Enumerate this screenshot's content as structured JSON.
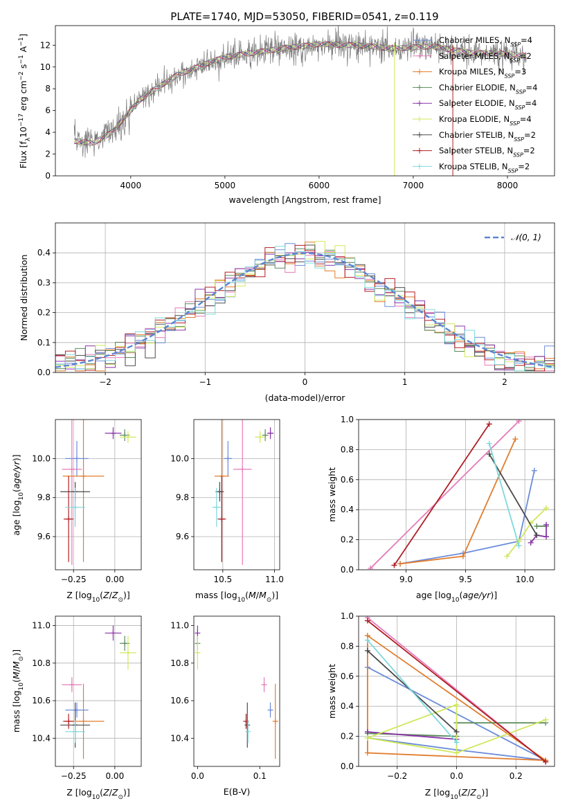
{
  "title": "PLATE=1740, MJD=53050, FIBERID=0541, z=0.119",
  "colors": {
    "Chabrier MILES": "#6a8cd9",
    "Salpeter MILES": "#e57ab8",
    "Kroupa MILES": "#e17c2c",
    "Chabrier ELODIE": "#5a8a5a",
    "Salpeter ELODIE": "#8a33a8",
    "Kroupa ELODIE": "#cfe85a",
    "Chabrier STELIB": "#4a4a4a",
    "Salpeter STELIB": "#b01e24",
    "Kroupa STELIB": "#7dd8dc"
  },
  "chart_data": [
    {
      "type": "line",
      "xlabel": "wavelength [Angstrom, rest frame]",
      "ylabel": "Flux [f_λ10^−17 erg cm^−2 s^−1 A^−1]",
      "xlim": [
        3200,
        8500
      ],
      "ylim": [
        0,
        13.8
      ],
      "xticks": [
        4000,
        5000,
        6000,
        7000,
        8000
      ],
      "yticks": [
        0,
        2,
        4,
        6,
        8,
        10,
        12
      ],
      "grid": false,
      "legend_position": "top-right",
      "legend": [
        {
          "key": "Chabrier MILES",
          "label": "Chabrier MILES, N",
          "sub": "SSP",
          "n": "=4"
        },
        {
          "key": "Salpeter MILES",
          "label": "Salpeter MILES, N",
          "sub": "SSP",
          "n": "=2"
        },
        {
          "key": "Kroupa MILES",
          "label": "Kroupa MILES, N",
          "sub": "SSP",
          "n": "=3"
        },
        {
          "key": "Chabrier ELODIE",
          "label": "Chabrier ELODIE, N",
          "sub": "SSP",
          "n": "=4"
        },
        {
          "key": "Salpeter ELODIE",
          "label": "Salpeter ELODIE, N",
          "sub": "SSP",
          "n": "=4"
        },
        {
          "key": "Kroupa ELODIE",
          "label": "Kroupa ELODIE, N",
          "sub": "SSP",
          "n": "=4"
        },
        {
          "key": "Chabrier STELIB",
          "label": "Chabrier STELIB, N",
          "sub": "SSP",
          "n": "=2"
        },
        {
          "key": "Salpeter STELIB",
          "label": "Salpeter STELIB, N",
          "sub": "SSP",
          "n": "=2"
        },
        {
          "key": "Kroupa STELIB",
          "label": "Kroupa STELIB, N",
          "sub": "SSP",
          "n": "=2"
        }
      ],
      "continuum_x": [
        3400,
        3600,
        3800,
        3950,
        4100,
        4300,
        4500,
        4800,
        5000,
        5300,
        5600,
        6000,
        6400,
        6800,
        7200,
        7600,
        8000,
        8200
      ],
      "continuum_y": [
        3.2,
        3.0,
        4.0,
        5.5,
        7.0,
        8.2,
        9.3,
        10.3,
        10.9,
        11.3,
        11.7,
        12.1,
        12.0,
        11.7,
        11.9,
        11.3,
        11.2,
        11.0
      ]
    },
    {
      "type": "bar",
      "subtype": "step-histogram",
      "xlabel": "(data-model)/error",
      "ylabel": "Normed distribution",
      "xlim": [
        -2.5,
        2.5
      ],
      "ylim": [
        0,
        0.5
      ],
      "xticks": [
        -2,
        -1,
        0,
        1,
        2
      ],
      "yticks": [
        0.0,
        0.1,
        0.2,
        0.3,
        0.4
      ],
      "grid": true,
      "legend_position": "top-right",
      "reference_curve": {
        "label": "N(0,1)",
        "mu": 0,
        "sigma": 1
      },
      "bin_edges_start": -2.5,
      "bin_width": 0.1,
      "series_keys": [
        "Chabrier MILES",
        "Salpeter MILES",
        "Kroupa MILES",
        "Chabrier ELODIE",
        "Salpeter ELODIE",
        "Kroupa ELODIE",
        "Chabrier STELIB",
        "Salpeter STELIB",
        "Kroupa STELIB"
      ]
    },
    {
      "type": "scatter",
      "subtype": "errorbar",
      "xlabel": "Z [log10(Z/Z⊙)]",
      "ylabel": "age [log10(age/yr)]",
      "xlim": [
        -0.36,
        0.16
      ],
      "ylim": [
        9.43,
        10.2
      ],
      "xticks": [
        -0.25,
        0.0
      ],
      "yticks": [
        9.6,
        9.8,
        10.0
      ],
      "grid": true,
      "points": [
        {
          "key": "Chabrier MILES",
          "x": -0.23,
          "xerr": 0.07,
          "y": 10.0,
          "yerr": 0.09
        },
        {
          "key": "Salpeter MILES",
          "x": -0.26,
          "xerr": 0.06,
          "y": 9.945,
          "yerr": 0.49
        },
        {
          "key": "Kroupa MILES",
          "x": -0.19,
          "xerr": 0.125,
          "y": 9.91,
          "yerr": 0.44
        },
        {
          "key": "Chabrier ELODIE",
          "x": 0.06,
          "xerr": 0.03,
          "y": 10.12,
          "yerr": 0.03
        },
        {
          "key": "Salpeter ELODIE",
          "x": -0.01,
          "xerr": 0.05,
          "y": 10.13,
          "yerr": 0.03
        },
        {
          "key": "Kroupa ELODIE",
          "x": 0.08,
          "xerr": 0.05,
          "y": 10.11,
          "yerr": 0.03
        },
        {
          "key": "Chabrier STELIB",
          "x": -0.24,
          "xerr": 0.09,
          "y": 9.83,
          "yerr": 0.05
        },
        {
          "key": "Salpeter STELIB",
          "x": -0.28,
          "xerr": 0.03,
          "y": 9.69,
          "yerr": 0.22
        },
        {
          "key": "Kroupa STELIB",
          "x": -0.24,
          "xerr": 0.06,
          "y": 9.75,
          "yerr": 0.1
        }
      ]
    },
    {
      "type": "scatter",
      "subtype": "errorbar",
      "xlabel": "mass [log10(M/M⊙)]",
      "ylabel": "",
      "xlim": [
        10.22,
        11.05
      ],
      "ylim": [
        9.43,
        10.2
      ],
      "xticks": [
        10.5,
        11.0
      ],
      "yticks": [
        9.6,
        9.8,
        10.0
      ],
      "grid": true,
      "points": [
        {
          "key": "Chabrier MILES",
          "x": 10.55,
          "xerr": 0.04,
          "y": 10.0,
          "yerr": 0.09
        },
        {
          "key": "Salpeter MILES",
          "x": 10.69,
          "xerr": 0.09,
          "y": 9.945,
          "yerr": 0.49
        },
        {
          "key": "Kroupa MILES",
          "x": 10.49,
          "xerr": 0.07,
          "y": 9.91,
          "yerr": 0.44
        },
        {
          "key": "Chabrier ELODIE",
          "x": 10.91,
          "xerr": 0.03,
          "y": 10.12,
          "yerr": 0.03
        },
        {
          "key": "Salpeter ELODIE",
          "x": 10.96,
          "xerr": 0.03,
          "y": 10.13,
          "yerr": 0.03
        },
        {
          "key": "Kroupa ELODIE",
          "x": 10.86,
          "xerr": 0.05,
          "y": 10.11,
          "yerr": 0.03
        },
        {
          "key": "Chabrier STELIB",
          "x": 10.47,
          "xerr": 0.04,
          "y": 9.83,
          "yerr": 0.05
        },
        {
          "key": "Salpeter STELIB",
          "x": 10.49,
          "xerr": 0.04,
          "y": 9.69,
          "yerr": 0.22
        },
        {
          "key": "Kroupa STELIB",
          "x": 10.44,
          "xerr": 0.04,
          "y": 9.75,
          "yerr": 0.1
        }
      ]
    },
    {
      "type": "line",
      "subtype": "markers",
      "xlabel": "age [log10(age/yr)]",
      "ylabel": "mass weight",
      "xlim": [
        8.6,
        10.25
      ],
      "ylim": [
        0,
        1
      ],
      "xticks": [
        9.0,
        9.5,
        10.0
      ],
      "yticks": [
        0.0,
        0.2,
        0.4,
        0.6,
        0.8,
        1.0
      ],
      "grid": true,
      "series": [
        {
          "key": "Chabrier MILES",
          "x": [
            8.95,
            9.48,
            9.95,
            10.08
          ],
          "y": [
            0.04,
            0.11,
            0.19,
            0.66
          ]
        },
        {
          "key": "Salpeter MILES",
          "x": [
            8.7,
            9.95
          ],
          "y": [
            0.01,
            0.99
          ]
        },
        {
          "key": "Kroupa MILES",
          "x": [
            8.95,
            9.48,
            9.92
          ],
          "y": [
            0.04,
            0.09,
            0.87
          ]
        },
        {
          "key": "Chabrier ELODIE",
          "x": [
            10.1,
            10.18
          ],
          "y": [
            0.29,
            0.29
          ]
        },
        {
          "key": "Salpeter ELODIE",
          "x": [
            10.05,
            10.1,
            10.18,
            10.18
          ],
          "y": [
            0.18,
            0.23,
            0.22,
            0.3
          ]
        },
        {
          "key": "Kroupa ELODIE",
          "x": [
            9.85,
            9.95,
            10.05,
            10.18
          ],
          "y": [
            0.09,
            0.19,
            0.31,
            0.41
          ]
        },
        {
          "key": "Chabrier STELIB",
          "x": [
            9.7,
            10.1
          ],
          "y": [
            0.77,
            0.23
          ]
        },
        {
          "key": "Salpeter STELIB",
          "x": [
            8.9,
            9.7
          ],
          "y": [
            0.03,
            0.97
          ]
        },
        {
          "key": "Kroupa STELIB",
          "x": [
            9.7,
            9.95
          ],
          "y": [
            0.84,
            0.16
          ]
        }
      ]
    },
    {
      "type": "scatter",
      "subtype": "errorbar",
      "xlabel": "Z [log10(Z/Z⊙)]",
      "ylabel": "mass [log10(M/M⊙)]",
      "xlim": [
        -0.36,
        0.16
      ],
      "ylim": [
        10.25,
        11.05
      ],
      "xticks": [
        -0.25,
        0.0
      ],
      "yticks": [
        10.4,
        10.6,
        10.8,
        11.0
      ],
      "grid": true,
      "points": [
        {
          "key": "Chabrier MILES",
          "x": -0.23,
          "xerr": 0.07,
          "y": 10.55,
          "yerr": 0.04
        },
        {
          "key": "Salpeter MILES",
          "x": -0.26,
          "xerr": 0.06,
          "y": 10.685,
          "yerr": 0.04
        },
        {
          "key": "Kroupa MILES",
          "x": -0.19,
          "xerr": 0.125,
          "y": 10.49,
          "yerr": 0.2
        },
        {
          "key": "Chabrier ELODIE",
          "x": 0.06,
          "xerr": 0.03,
          "y": 10.905,
          "yerr": 0.04
        },
        {
          "key": "Salpeter ELODIE",
          "x": -0.01,
          "xerr": 0.05,
          "y": 10.96,
          "yerr": 0.04
        },
        {
          "key": "Kroupa ELODIE",
          "x": 0.08,
          "xerr": 0.05,
          "y": 10.855,
          "yerr": 0.09
        },
        {
          "key": "Chabrier STELIB",
          "x": -0.24,
          "xerr": 0.09,
          "y": 10.47,
          "yerr": 0.12
        },
        {
          "key": "Salpeter STELIB",
          "x": -0.28,
          "xerr": 0.03,
          "y": 10.49,
          "yerr": 0.04
        },
        {
          "key": "Kroupa STELIB",
          "x": -0.24,
          "xerr": 0.06,
          "y": 10.435,
          "yerr": 0.06
        }
      ]
    },
    {
      "type": "scatter",
      "subtype": "errorbar",
      "xlabel": "E(B-V)",
      "ylabel": "",
      "xlim": [
        -0.006,
        0.132
      ],
      "ylim": [
        10.25,
        11.05
      ],
      "xticks": [
        0.0,
        0.1
      ],
      "yticks": [
        10.4,
        10.6,
        10.8,
        11.0
      ],
      "grid": false,
      "points": [
        {
          "key": "Chabrier MILES",
          "x": 0.117,
          "xerr": 0,
          "y": 10.55,
          "yerr": 0.04
        },
        {
          "key": "Salpeter MILES",
          "x": 0.107,
          "xerr": 0,
          "y": 10.685,
          "yerr": 0.04
        },
        {
          "key": "Kroupa MILES",
          "x": 0.125,
          "xerr": 0,
          "y": 10.49,
          "yerr": 0.2
        },
        {
          "key": "Chabrier ELODIE",
          "x": 0.0,
          "xerr": 0,
          "y": 10.905,
          "yerr": 0.04
        },
        {
          "key": "Salpeter ELODIE",
          "x": 0.0,
          "xerr": 0,
          "y": 10.96,
          "yerr": 0.04
        },
        {
          "key": "Kroupa ELODIE",
          "x": 0.0,
          "xerr": 0,
          "y": 10.855,
          "yerr": 0.09
        },
        {
          "key": "Chabrier STELIB",
          "x": 0.08,
          "xerr": 0,
          "y": 10.47,
          "yerr": 0.12
        },
        {
          "key": "Salpeter STELIB",
          "x": 0.078,
          "xerr": 0,
          "y": 10.49,
          "yerr": 0.04
        },
        {
          "key": "Kroupa STELIB",
          "x": 0.081,
          "xerr": 0,
          "y": 10.435,
          "yerr": 0.06
        }
      ]
    },
    {
      "type": "line",
      "subtype": "markers",
      "xlabel": "Z [log10(Z/Z⊙)]",
      "ylabel": "mass weight",
      "xlim": [
        -0.33,
        0.33
      ],
      "ylim": [
        0,
        1
      ],
      "xticks": [
        -0.2,
        0.0,
        0.2
      ],
      "yticks": [
        0.0,
        0.2,
        0.4,
        0.6,
        0.8,
        1.0
      ],
      "grid": true,
      "series": [
        {
          "key": "Chabrier MILES",
          "x": [
            -0.3,
            0.0,
            0.3,
            -0.3
          ],
          "y": [
            0.19,
            0.11,
            0.04,
            0.66
          ]
        },
        {
          "key": "Salpeter MILES",
          "x": [
            -0.3,
            0.3
          ],
          "y": [
            0.99,
            0.03
          ]
        },
        {
          "key": "Kroupa MILES",
          "x": [
            -0.3,
            -0.3,
            0.3,
            -0.3
          ],
          "y": [
            0.87,
            0.09,
            0.04,
            0.87
          ]
        },
        {
          "key": "Chabrier ELODIE",
          "x": [
            -0.3,
            0.0,
            0.0,
            0.3
          ],
          "y": [
            0.22,
            0.2,
            0.29,
            0.29
          ]
        },
        {
          "key": "Salpeter ELODIE",
          "x": [
            -0.3,
            0.0
          ],
          "y": [
            0.23,
            0.18
          ]
        },
        {
          "key": "Kroupa ELODIE",
          "x": [
            -0.3,
            0.0,
            0.0,
            0.3,
            0.0,
            -0.3
          ],
          "y": [
            0.19,
            0.41,
            0.09,
            0.31,
            0.09,
            0.19
          ]
        },
        {
          "key": "Chabrier STELIB",
          "x": [
            -0.3,
            0.0
          ],
          "y": [
            0.77,
            0.23
          ]
        },
        {
          "key": "Salpeter STELIB",
          "x": [
            -0.3,
            0.3
          ],
          "y": [
            0.97,
            0.03
          ]
        },
        {
          "key": "Kroupa STELIB",
          "x": [
            -0.3,
            0.0
          ],
          "y": [
            0.84,
            0.16
          ]
        }
      ]
    }
  ]
}
